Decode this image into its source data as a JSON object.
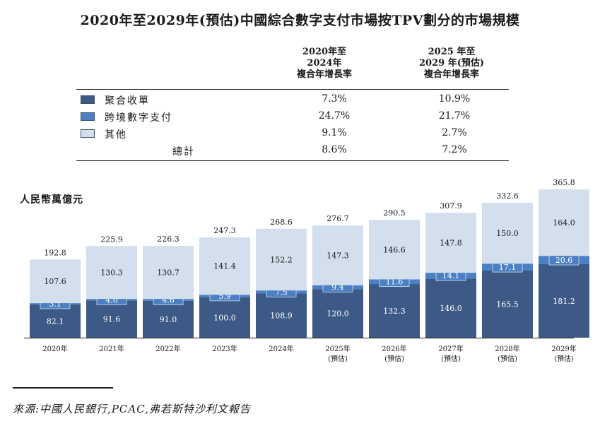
{
  "title": "2020年至2029年(預估)中國綜合數字支付市場按TPV劃分的市場規模",
  "cagr_table": {
    "headers": [
      [
        "2020年至",
        "2024年",
        "複合年增長率"
      ],
      [
        "2025 年至",
        "2029 年(預估)",
        "複合年增長率"
      ]
    ],
    "rows": [
      {
        "label": "聚合收單",
        "cagr_2020_2024": "7.3%",
        "cagr_2025_2029": "10.9%",
        "color": "#3d5a86"
      },
      {
        "label": "跨境數字支付",
        "cagr_2020_2024": "24.7%",
        "cagr_2025_2029": "21.7%",
        "color": "#4c80c4"
      },
      {
        "label": "其他",
        "cagr_2020_2024": "9.1%",
        "cagr_2025_2029": "2.7%",
        "color": "#d3dfed"
      }
    ],
    "total": {
      "label": "總計",
      "cagr_2020_2024": "8.6%",
      "cagr_2025_2029": "7.2%"
    }
  },
  "unit_label": "人民幣萬億元",
  "chart_data": {
    "type": "bar",
    "stacked": true,
    "categories": [
      "2020年",
      "2021年",
      "2022年",
      "2023年",
      "2024年",
      "2025年",
      "2026年",
      "2027年",
      "2028年",
      "2029年"
    ],
    "category_sublabels": [
      "",
      "",
      "",
      "",
      "",
      "(預估)",
      "(預估)",
      "(預估)",
      "(預估)",
      "(預估)"
    ],
    "series": [
      {
        "name": "聚合收單",
        "color": "#3d5a86",
        "label_color": "#ffffff",
        "values": [
          82.1,
          91.6,
          91.0,
          100.0,
          108.9,
          120.0,
          132.3,
          146.0,
          165.5,
          181.2
        ]
      },
      {
        "name": "跨境數字支付",
        "color": "#4c80c4",
        "label_color": "#ffffff",
        "values": [
          3.1,
          4.0,
          4.6,
          5.9,
          7.5,
          9.4,
          11.6,
          14.1,
          17.1,
          20.6
        ]
      },
      {
        "name": "其他",
        "color": "#d3dfed",
        "label_color": "#1a1a1a",
        "values": [
          107.6,
          130.3,
          130.7,
          141.4,
          152.2,
          147.3,
          146.6,
          147.8,
          150.0,
          164.0
        ]
      }
    ],
    "totals": [
      192.8,
      225.9,
      226.3,
      247.3,
      268.6,
      276.7,
      290.5,
      307.9,
      332.6,
      365.8
    ],
    "ylim": [
      0,
      365.8
    ],
    "grid": false
  },
  "source": "來源:中國人民銀行,PCAC,弗若斯特沙利文報告"
}
